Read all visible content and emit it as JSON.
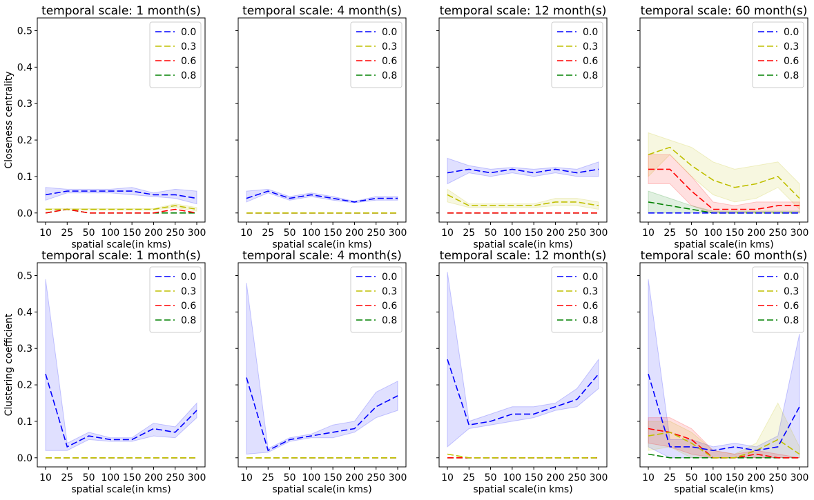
{
  "chart_data": [
    {
      "type": "line",
      "title": "temporal scale: 1 month(s)",
      "xlabel": "spatial scale(in kms)",
      "ylabel": "Closeness centrality",
      "x": [
        "10",
        "25",
        "50",
        "100",
        "150",
        "200",
        "250",
        "300"
      ],
      "ylim": [
        -0.025,
        0.535
      ],
      "yticks": [
        "0.0",
        "0.1",
        "0.2",
        "0.3",
        "0.4",
        "0.5"
      ],
      "legend": "top-right",
      "series": [
        {
          "name": "0.0",
          "color": "#0000ff",
          "values": [
            0.05,
            0.06,
            0.06,
            0.06,
            0.06,
            0.05,
            0.05,
            0.04
          ],
          "lower": [
            0.035,
            0.055,
            0.055,
            0.055,
            0.05,
            0.045,
            0.04,
            0.025
          ],
          "upper": [
            0.07,
            0.065,
            0.065,
            0.065,
            0.07,
            0.055,
            0.065,
            0.06
          ]
        },
        {
          "name": "0.3",
          "color": "#bfbf00",
          "values": [
            0.01,
            0.01,
            0.01,
            0.01,
            0.01,
            0.01,
            0.02,
            0.01
          ],
          "lower": [
            0.008,
            0.008,
            0.008,
            0.008,
            0.008,
            0.008,
            0.015,
            0.005
          ],
          "upper": [
            0.012,
            0.012,
            0.012,
            0.012,
            0.012,
            0.012,
            0.025,
            0.015
          ]
        },
        {
          "name": "0.6",
          "color": "#ff0000",
          "values": [
            0.0,
            0.01,
            0.0,
            0.0,
            0.0,
            0.0,
            0.01,
            0.0
          ]
        },
        {
          "name": "0.8",
          "color": "#008000",
          "values": [
            0.0,
            0.01,
            0.0,
            0.0,
            0.0,
            0.0,
            0.0,
            0.0
          ]
        }
      ]
    },
    {
      "type": "line",
      "title": "temporal scale: 4 month(s)",
      "xlabel": "spatial scale(in kms)",
      "ylabel": "",
      "x": [
        "10",
        "25",
        "50",
        "100",
        "150",
        "200",
        "250",
        "300"
      ],
      "ylim": [
        -0.025,
        0.535
      ],
      "yticks": [],
      "legend": "top-right",
      "series": [
        {
          "name": "0.0",
          "color": "#0000ff",
          "values": [
            0.04,
            0.06,
            0.04,
            0.05,
            0.04,
            0.03,
            0.04,
            0.04
          ],
          "lower": [
            0.03,
            0.055,
            0.035,
            0.045,
            0.035,
            0.028,
            0.035,
            0.035
          ],
          "upper": [
            0.06,
            0.065,
            0.045,
            0.055,
            0.045,
            0.032,
            0.045,
            0.045
          ]
        },
        {
          "name": "0.3",
          "color": "#bfbf00",
          "values": [
            0.0,
            0.0,
            0.0,
            0.0,
            0.0,
            0.0,
            0.0,
            0.0
          ]
        },
        {
          "name": "0.6",
          "color": "#ff0000",
          "values": [
            0.0,
            0.0,
            0.0,
            0.0,
            0.0,
            0.0,
            0.0,
            0.0
          ]
        },
        {
          "name": "0.8",
          "color": "#008000",
          "values": [
            0.0,
            0.0,
            0.0,
            0.0,
            0.0,
            0.0,
            0.0,
            0.0
          ]
        }
      ]
    },
    {
      "type": "line",
      "title": "temporal scale: 12 month(s)",
      "xlabel": "spatial scale(in kms)",
      "ylabel": "",
      "x": [
        "10",
        "25",
        "50",
        "100",
        "150",
        "200",
        "250",
        "300"
      ],
      "ylim": [
        -0.025,
        0.535
      ],
      "yticks": [],
      "legend": "top-right",
      "series": [
        {
          "name": "0.0",
          "color": "#0000ff",
          "values": [
            0.11,
            0.12,
            0.11,
            0.12,
            0.11,
            0.12,
            0.11,
            0.12
          ],
          "lower": [
            0.08,
            0.11,
            0.1,
            0.11,
            0.1,
            0.11,
            0.1,
            0.1
          ],
          "upper": [
            0.15,
            0.13,
            0.12,
            0.125,
            0.12,
            0.125,
            0.12,
            0.14
          ]
        },
        {
          "name": "0.3",
          "color": "#bfbf00",
          "values": [
            0.05,
            0.02,
            0.02,
            0.02,
            0.02,
            0.03,
            0.03,
            0.02
          ],
          "lower": [
            0.03,
            0.015,
            0.015,
            0.015,
            0.015,
            0.02,
            0.02,
            0.01
          ],
          "upper": [
            0.065,
            0.025,
            0.025,
            0.025,
            0.025,
            0.04,
            0.04,
            0.03
          ]
        },
        {
          "name": "0.6",
          "color": "#ff0000",
          "values": [
            0.0,
            0.0,
            0.0,
            0.0,
            0.0,
            0.0,
            0.0,
            0.0
          ]
        },
        {
          "name": "0.8",
          "color": "#008000",
          "values": [
            0.0,
            0.0,
            0.0,
            0.0,
            0.0,
            0.0,
            0.0,
            0.0
          ]
        }
      ]
    },
    {
      "type": "line",
      "title": "temporal scale: 60 month(s)",
      "xlabel": "spatial scale(in kms)",
      "ylabel": "",
      "x": [
        "10",
        "25",
        "50",
        "100",
        "150",
        "200",
        "250",
        "300"
      ],
      "ylim": [
        -0.025,
        0.535
      ],
      "yticks": [],
      "legend": "top-right",
      "series": [
        {
          "name": "0.0",
          "color": "#0000ff",
          "values": [
            0.0,
            0.0,
            0.0,
            0.0,
            0.0,
            0.0,
            0.0,
            0.0
          ]
        },
        {
          "name": "0.3",
          "color": "#bfbf00",
          "values": [
            0.16,
            0.18,
            0.13,
            0.09,
            0.07,
            0.08,
            0.1,
            0.04
          ],
          "lower": [
            0.1,
            0.16,
            0.1,
            0.05,
            0.03,
            0.04,
            0.07,
            0.01
          ],
          "upper": [
            0.22,
            0.2,
            0.18,
            0.14,
            0.12,
            0.13,
            0.14,
            0.08
          ]
        },
        {
          "name": "0.6",
          "color": "#ff0000",
          "values": [
            0.12,
            0.12,
            0.06,
            0.01,
            0.01,
            0.01,
            0.02,
            0.02
          ],
          "lower": [
            0.08,
            0.08,
            0.02,
            0.0,
            0.0,
            0.0,
            0.0,
            0.0
          ],
          "upper": [
            0.16,
            0.16,
            0.1,
            0.03,
            0.02,
            0.03,
            0.03,
            0.03
          ]
        },
        {
          "name": "0.8",
          "color": "#008000",
          "values": [
            0.03,
            0.02,
            0.01,
            0.0,
            0.0,
            0.0,
            0.0,
            0.0
          ],
          "lower": [
            0.0,
            0.0,
            0.0,
            0.0,
            0.0,
            0.0,
            0.0,
            0.0
          ],
          "upper": [
            0.06,
            0.04,
            0.02,
            0.005,
            0.005,
            0.005,
            0.005,
            0.005
          ]
        }
      ]
    },
    {
      "type": "line",
      "title": "temporal scale: 1 month(s)",
      "xlabel": "spatial scale(in kms)",
      "ylabel": "Clustering coefficient",
      "x": [
        "10",
        "25",
        "50",
        "100",
        "150",
        "200",
        "250",
        "300"
      ],
      "ylim": [
        -0.025,
        0.535
      ],
      "yticks": [
        "0.0",
        "0.1",
        "0.2",
        "0.3",
        "0.4",
        "0.5"
      ],
      "legend": "top-right",
      "series": [
        {
          "name": "0.0",
          "color": "#0000ff",
          "values": [
            0.23,
            0.03,
            0.06,
            0.05,
            0.05,
            0.08,
            0.07,
            0.13
          ],
          "lower": [
            0.02,
            0.02,
            0.05,
            0.045,
            0.045,
            0.06,
            0.055,
            0.11
          ],
          "upper": [
            0.49,
            0.04,
            0.07,
            0.055,
            0.055,
            0.095,
            0.085,
            0.15
          ]
        },
        {
          "name": "0.3",
          "color": "#bfbf00",
          "values": [
            0.0,
            0.0,
            0.0,
            0.0,
            0.0,
            0.0,
            0.0,
            0.0
          ]
        },
        {
          "name": "0.6",
          "color": "#ff0000",
          "values": [
            0.0,
            0.0,
            0.0,
            0.0,
            0.0,
            0.0,
            0.0,
            0.0
          ]
        },
        {
          "name": "0.8",
          "color": "#008000",
          "values": [
            0.0,
            0.0,
            0.0,
            0.0,
            0.0,
            0.0,
            0.0,
            0.0
          ]
        }
      ]
    },
    {
      "type": "line",
      "title": "temporal scale: 4 month(s)",
      "xlabel": "spatial scale(in kms)",
      "ylabel": "",
      "x": [
        "10",
        "25",
        "50",
        "100",
        "150",
        "200",
        "250",
        "300"
      ],
      "ylim": [
        -0.025,
        0.535
      ],
      "yticks": [],
      "legend": "top-right",
      "series": [
        {
          "name": "0.0",
          "color": "#0000ff",
          "values": [
            0.22,
            0.02,
            0.05,
            0.06,
            0.07,
            0.08,
            0.14,
            0.17
          ],
          "lower": [
            0.01,
            0.015,
            0.045,
            0.055,
            0.055,
            0.07,
            0.11,
            0.13
          ],
          "upper": [
            0.48,
            0.025,
            0.055,
            0.065,
            0.09,
            0.1,
            0.18,
            0.21
          ]
        },
        {
          "name": "0.3",
          "color": "#bfbf00",
          "values": [
            0.0,
            0.0,
            0.0,
            0.0,
            0.0,
            0.0,
            0.0,
            0.0
          ]
        },
        {
          "name": "0.6",
          "color": "#ff0000",
          "values": [
            0.0,
            0.0,
            0.0,
            0.0,
            0.0,
            0.0,
            0.0,
            0.0
          ]
        },
        {
          "name": "0.8",
          "color": "#008000",
          "values": [
            0.0,
            0.0,
            0.0,
            0.0,
            0.0,
            0.0,
            0.0,
            0.0
          ]
        }
      ]
    },
    {
      "type": "line",
      "title": "temporal scale: 12 month(s)",
      "xlabel": "spatial scale(in kms)",
      "ylabel": "",
      "x": [
        "10",
        "25",
        "50",
        "100",
        "150",
        "200",
        "250",
        "300"
      ],
      "ylim": [
        -0.025,
        0.535
      ],
      "yticks": [],
      "legend": "top-right",
      "series": [
        {
          "name": "0.0",
          "color": "#0000ff",
          "values": [
            0.27,
            0.09,
            0.1,
            0.12,
            0.12,
            0.14,
            0.16,
            0.23
          ],
          "lower": [
            0.03,
            0.08,
            0.09,
            0.1,
            0.11,
            0.13,
            0.14,
            0.19
          ],
          "upper": [
            0.51,
            0.1,
            0.12,
            0.14,
            0.14,
            0.15,
            0.19,
            0.27
          ]
        },
        {
          "name": "0.3",
          "color": "#bfbf00",
          "values": [
            0.01,
            0.0,
            0.0,
            0.0,
            0.0,
            0.0,
            0.0,
            0.0
          ]
        },
        {
          "name": "0.6",
          "color": "#ff0000",
          "values": [
            0.0,
            0.0,
            0.0,
            0.0,
            0.0,
            0.0,
            0.0,
            0.0
          ]
        },
        {
          "name": "0.8",
          "color": "#008000",
          "values": [
            0.0,
            0.0,
            0.0,
            0.0,
            0.0,
            0.0,
            0.0,
            0.0
          ]
        }
      ]
    },
    {
      "type": "line",
      "title": "temporal scale: 60 month(s)",
      "xlabel": "spatial scale(in kms)",
      "ylabel": "",
      "x": [
        "10",
        "25",
        "50",
        "100",
        "150",
        "200",
        "250",
        "300"
      ],
      "ylim": [
        -0.025,
        0.535
      ],
      "yticks": [],
      "legend": "top-right",
      "series": [
        {
          "name": "0.0",
          "color": "#0000ff",
          "values": [
            0.23,
            0.03,
            0.03,
            0.02,
            0.03,
            0.02,
            0.03,
            0.14
          ],
          "lower": [
            0.03,
            0.0,
            0.0,
            0.0,
            0.0,
            0.0,
            0.0,
            0.0
          ],
          "upper": [
            0.49,
            0.05,
            0.05,
            0.03,
            0.04,
            0.03,
            0.06,
            0.34
          ]
        },
        {
          "name": "0.3",
          "color": "#bfbf00",
          "values": [
            0.06,
            0.07,
            0.04,
            0.0,
            0.0,
            0.02,
            0.05,
            0.01
          ],
          "lower": [
            0.02,
            0.03,
            0.0,
            0.0,
            0.0,
            0.0,
            0.0,
            0.0
          ],
          "upper": [
            0.1,
            0.1,
            0.07,
            0.02,
            0.01,
            0.04,
            0.15,
            0.03
          ]
        },
        {
          "name": "0.6",
          "color": "#ff0000",
          "values": [
            0.08,
            0.07,
            0.05,
            0.0,
            0.0,
            0.01,
            0.0,
            0.0
          ],
          "lower": [
            0.04,
            0.03,
            0.01,
            0.0,
            0.0,
            0.0,
            0.0,
            0.0
          ],
          "upper": [
            0.11,
            0.11,
            0.08,
            0.02,
            0.01,
            0.02,
            0.01,
            0.0
          ]
        },
        {
          "name": "0.8",
          "color": "#008000",
          "values": [
            0.01,
            0.0,
            0.0,
            0.0,
            0.0,
            0.0,
            0.0,
            0.0
          ]
        }
      ]
    }
  ]
}
